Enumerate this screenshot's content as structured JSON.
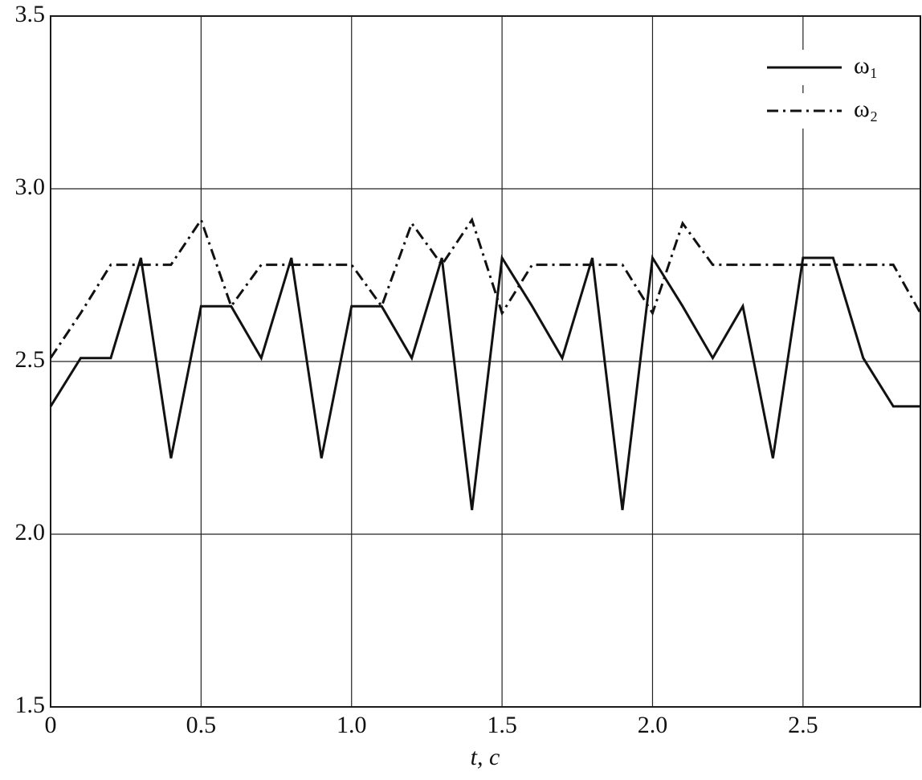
{
  "chart_data": {
    "type": "line",
    "x_label": "t, c",
    "x": [
      0,
      0.1,
      0.2,
      0.3,
      0.4,
      0.5,
      0.6,
      0.7,
      0.8,
      0.9,
      1.0,
      1.1,
      1.2,
      1.3,
      1.4,
      1.5,
      1.6,
      1.7,
      1.8,
      1.9,
      2.0,
      2.1,
      2.2,
      2.3,
      2.4,
      2.5,
      2.6,
      2.7,
      2.8,
      2.89
    ],
    "series": [
      {
        "name": "ω₁",
        "color": "#111111",
        "dash": "solid",
        "values": [
          2.37,
          2.51,
          2.51,
          2.8,
          2.22,
          2.66,
          2.66,
          2.51,
          2.8,
          2.22,
          2.66,
          2.66,
          2.51,
          2.8,
          2.07,
          2.8,
          2.66,
          2.51,
          2.8,
          2.07,
          2.8,
          2.66,
          2.51,
          2.66,
          2.22,
          2.8,
          2.8,
          2.51,
          2.37,
          2.37
        ]
      },
      {
        "name": "ω₂",
        "color": "#111111",
        "dash": "dashdot",
        "values": [
          2.51,
          2.64,
          2.78,
          2.78,
          2.78,
          2.91,
          2.66,
          2.78,
          2.78,
          2.78,
          2.78,
          2.66,
          2.9,
          2.78,
          2.91,
          2.64,
          2.78,
          2.78,
          2.78,
          2.78,
          2.64,
          2.9,
          2.78,
          2.78,
          2.78,
          2.78,
          2.78,
          2.78,
          2.78,
          2.64
        ]
      }
    ],
    "xlim": [
      0,
      2.89
    ],
    "xticks": [
      0,
      0.5,
      {
        "value": 1,
        "label": "1.0"
      },
      1.5,
      {
        "value": 2,
        "label": "2.0"
      },
      2.5
    ],
    "ylim": [
      1.5,
      3.5
    ],
    "yticks": [
      1.5,
      {
        "value": 2,
        "label": "2.0"
      },
      2.5,
      {
        "value": 3,
        "label": "3.0"
      },
      3.5
    ],
    "grid": true,
    "legend": "upper right"
  }
}
